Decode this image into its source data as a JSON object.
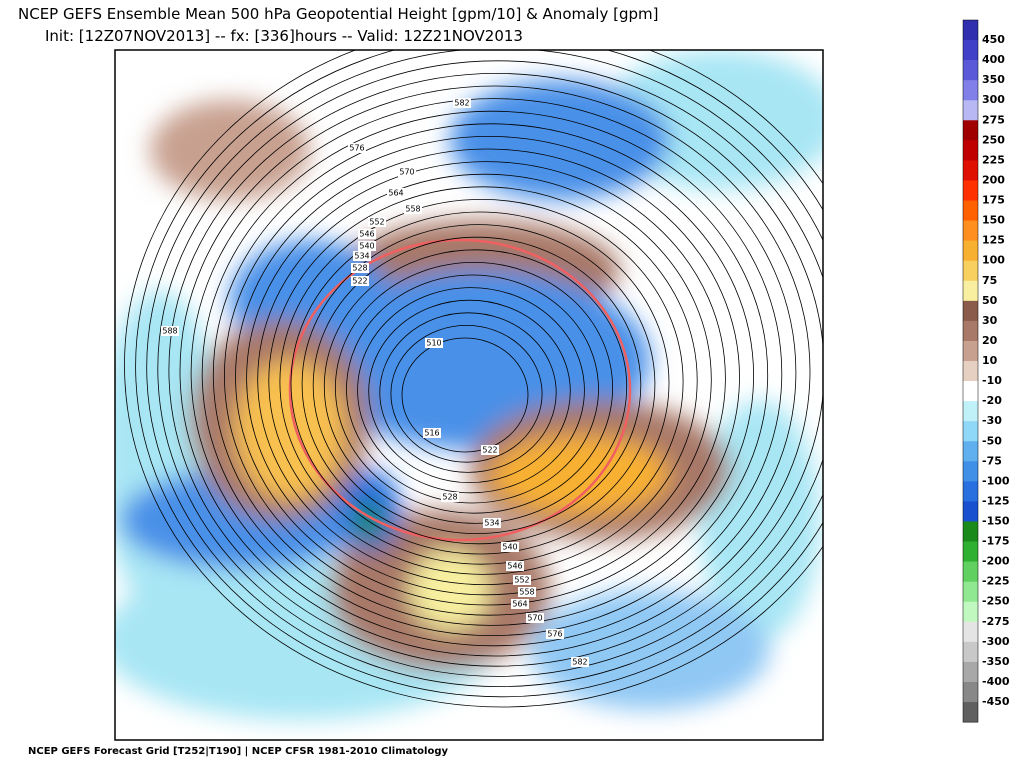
{
  "header": {
    "title": "NCEP GEFS Ensemble Mean 500 hPa Geopotential Height [gpm/10] & Anomaly [gpm]",
    "subtitle": "Init: [12Z07NOV2013] -- fx: [336]hours -- Valid: 12Z21NOV2013"
  },
  "footer": "NCEP GEFS Forecast Grid [T252|T190] | NCEP CFSR 1981-2010 Climatology",
  "colorbar": {
    "colors": [
      "#2f2fb0",
      "#4040c8",
      "#5a5ad8",
      "#8080e8",
      "#b8b8f4",
      "#a00000",
      "#c00000",
      "#e01000",
      "#ff3000",
      "#ff6000",
      "#ff9020",
      "#f8b030",
      "#f8d060",
      "#f8f0a0",
      "#8a5a4a",
      "#a87868",
      "#c8a090",
      "#e6d0c2",
      "#ffffff",
      "#c0f0f8",
      "#90d8f8",
      "#60b0f0",
      "#4090e8",
      "#2870e0",
      "#1850d0",
      "#1a8a1a",
      "#30b030",
      "#60d060",
      "#90e890",
      "#c0f8c0",
      "#e4e4e4",
      "#c8c8c8",
      "#a8a8a8",
      "#888888",
      "#606060"
    ],
    "ticks": [
      450,
      400,
      350,
      300,
      275,
      250,
      225,
      200,
      175,
      150,
      125,
      100,
      75,
      50,
      30,
      20,
      10,
      -10,
      -20,
      -30,
      -50,
      -75,
      -100,
      -125,
      -150,
      -175,
      -200,
      -225,
      -250,
      -275,
      -300,
      -350,
      -400,
      -450
    ]
  },
  "contour_labels": [
    582,
    576,
    570,
    564,
    558,
    552,
    546,
    540,
    534,
    528,
    522,
    588,
    510,
    516,
    522,
    528,
    534,
    540,
    546,
    552,
    558,
    564,
    570,
    576,
    582
  ]
}
